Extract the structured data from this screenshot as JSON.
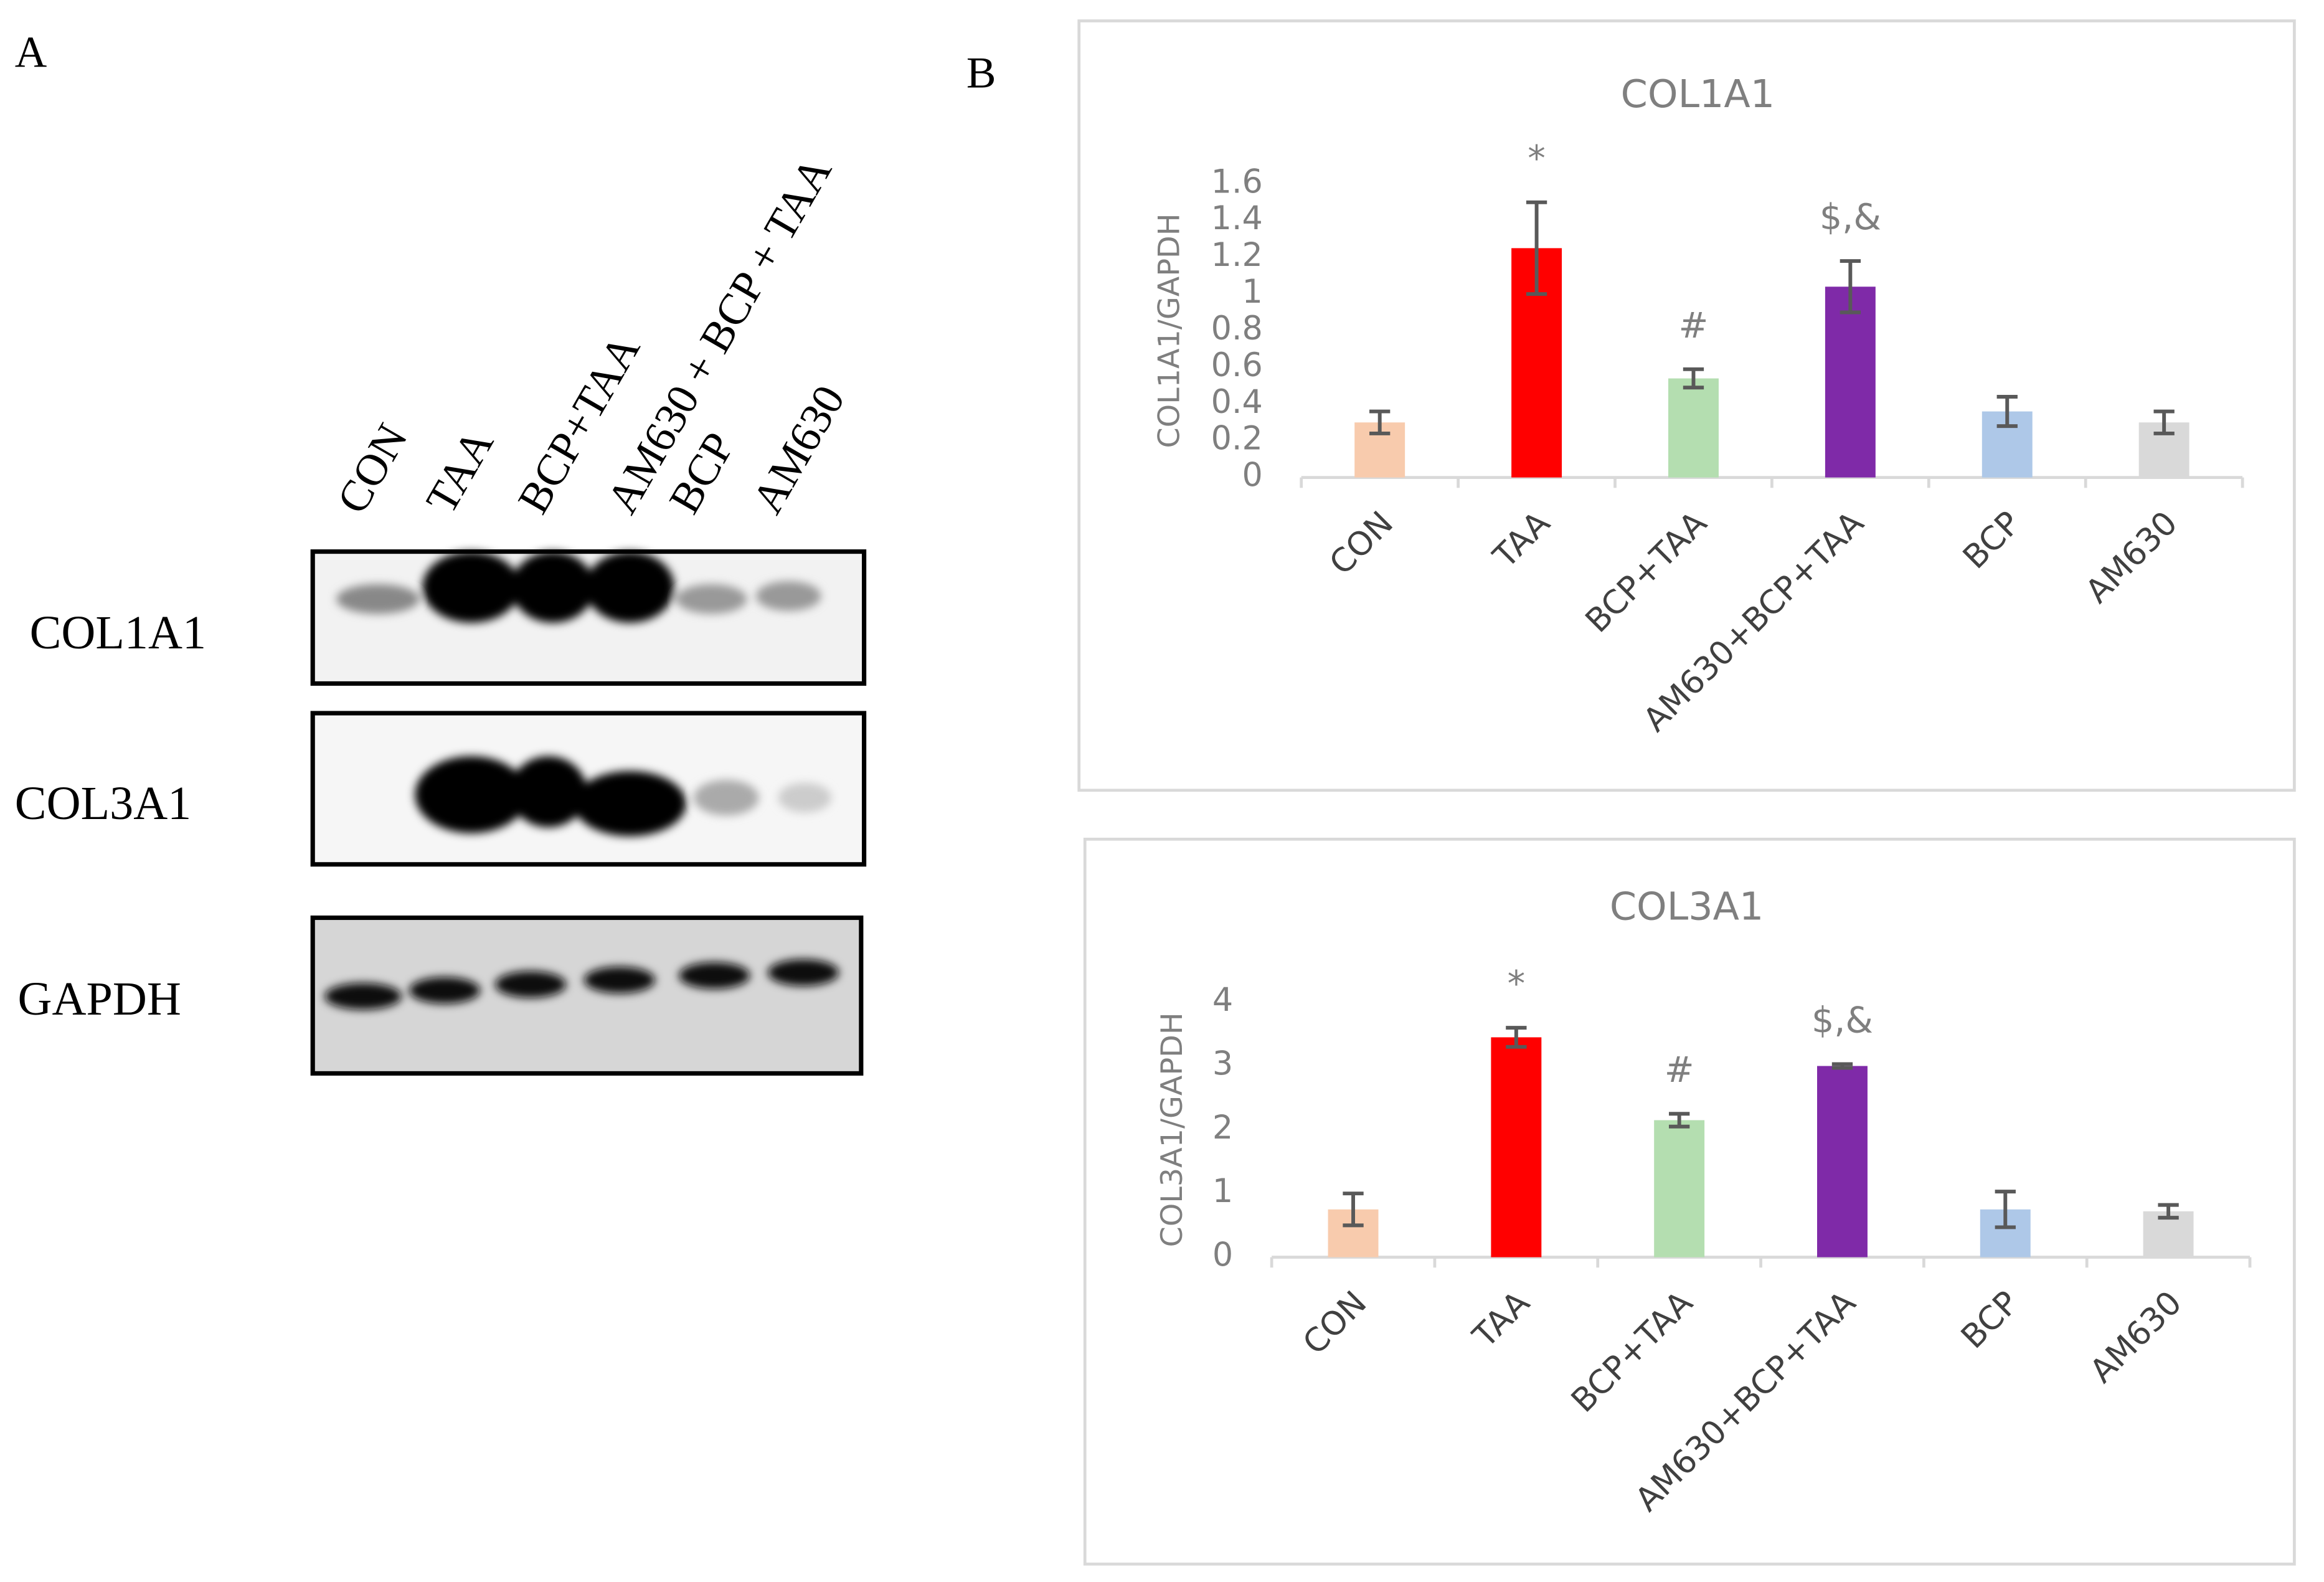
{
  "panel_labels": [
    "A",
    "B"
  ],
  "blot": {
    "lanes": [
      "CON",
      "TAA",
      "BCP+TAA",
      "AM630 + BCP + TAA",
      "BCP",
      "AM630"
    ],
    "rows": [
      "COL1A1",
      "COL3A1",
      "GAPDH"
    ]
  },
  "chart_data": [
    {
      "type": "bar",
      "title": "COL1A1",
      "y_label": "COL1A1/GAPDH",
      "categories": [
        "CON",
        "TAA",
        "BCP+TAA",
        "AM630+BCP+TAA",
        "BCP",
        "AM630"
      ],
      "values": [
        0.3,
        1.25,
        0.54,
        1.04,
        0.36,
        0.3
      ],
      "errors": [
        0.06,
        0.25,
        0.05,
        0.14,
        0.08,
        0.06
      ],
      "annotations": [
        null,
        "*",
        "#",
        "$,&",
        null,
        null
      ],
      "colors": [
        "#f8cbad",
        "#ff0000",
        "#b4deb0",
        "#7f2aa8",
        "#aec8e8",
        "#d9d9d9"
      ],
      "ylim": [
        0,
        1.6
      ],
      "yticks": [
        0,
        0.2,
        0.4,
        0.6,
        0.8,
        1,
        1.2,
        1.4,
        1.6
      ]
    },
    {
      "type": "bar",
      "title": "COL3A1",
      "y_label": "COL3A1/GAPDH",
      "categories": [
        "CON",
        "TAA",
        "BCP+TAA",
        "AM630+BCP+TAA",
        "BCP",
        "AM630"
      ],
      "values": [
        0.75,
        3.45,
        2.15,
        3.0,
        0.75,
        0.72
      ],
      "errors": [
        0.25,
        0.15,
        0.1,
        0.03,
        0.28,
        0.1
      ],
      "annotations": [
        null,
        "*",
        "#",
        "$,&",
        null,
        null
      ],
      "colors": [
        "#f8cbad",
        "#ff0000",
        "#b4deb0",
        "#7f2aa8",
        "#aec8e8",
        "#d9d9d9"
      ],
      "ylim": [
        0,
        4
      ],
      "yticks": [
        0,
        1,
        2,
        3,
        4
      ]
    }
  ]
}
